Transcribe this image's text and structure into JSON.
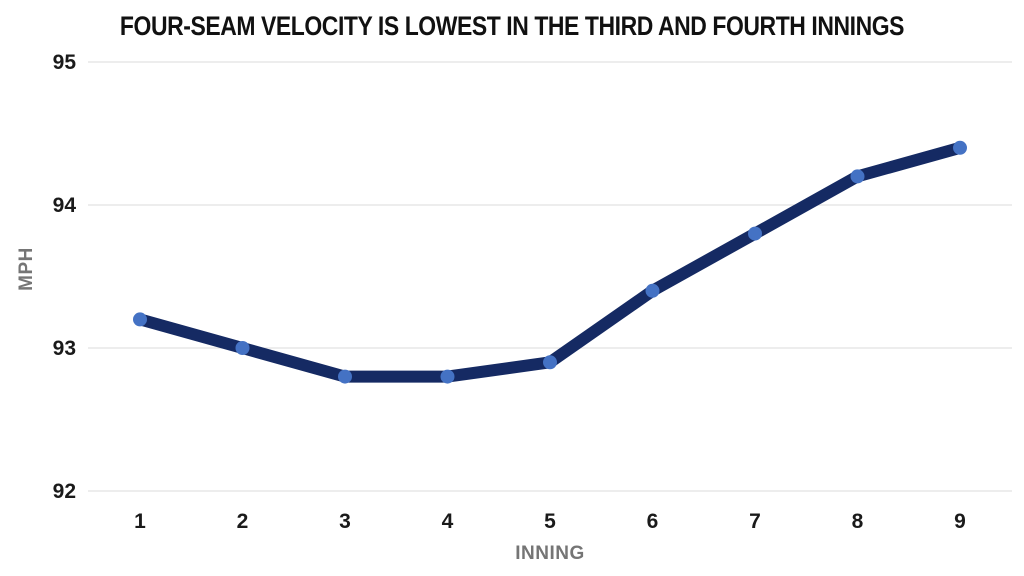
{
  "title": "FOUR-SEAM VELOCITY IS LOWEST IN THE THIRD AND FOURTH INNINGS",
  "chart_data": {
    "type": "line",
    "x": [
      1,
      2,
      3,
      4,
      5,
      6,
      7,
      8,
      9
    ],
    "series": [
      {
        "name": "Four-seam velocity",
        "values": [
          93.2,
          93.0,
          92.8,
          92.8,
          92.9,
          93.4,
          93.8,
          94.2,
          94.4
        ]
      }
    ],
    "title": "FOUR-SEAM VELOCITY IS LOWEST IN THE THIRD AND FOURTH INNINGS",
    "xlabel": "INNING",
    "ylabel": "MPH",
    "xticks": [
      "1",
      "2",
      "3",
      "4",
      "5",
      "6",
      "7",
      "8",
      "9"
    ],
    "yticks": [
      92,
      93,
      94,
      95
    ],
    "ylim": [
      92,
      95
    ],
    "grid": "horizontal-only",
    "legend_position": "none",
    "colors": {
      "line": "#152a63",
      "marker": "#4472c4",
      "gridline": "#e2e2e2",
      "tick_label": "#1a1a1a",
      "axis_title": "#757575",
      "title": "#111111",
      "background": "#ffffff"
    }
  }
}
